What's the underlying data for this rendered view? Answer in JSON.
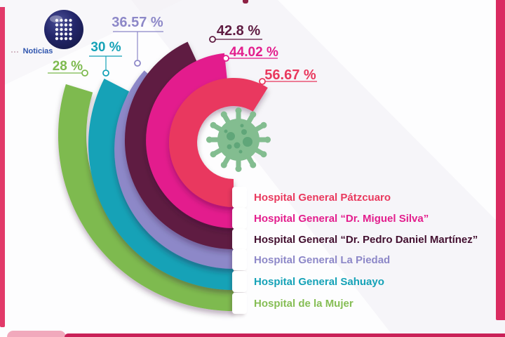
{
  "logo": {
    "text": "Noticias"
  },
  "chart_data": {
    "type": "bar",
    "variant": "radial-concentric-rings",
    "unit": "%",
    "legend_position": "bottom-right",
    "center_icon": "coronavirus",
    "rings": [
      {
        "label": "Hospital General Pátzcuaro",
        "value": 56.67,
        "display": "56.67 %",
        "color": "#e9395e",
        "label_color": "#e9395e"
      },
      {
        "label": "Hospital General “Dr. Miguel Silva”",
        "value": 44.02,
        "display": "44.02 %",
        "color": "#e31e8d",
        "label_color": "#e31e8d"
      },
      {
        "label": "Hospital General “Dr. Pedro Daniel Martínez”",
        "value": 42.8,
        "display": "42.8 %",
        "color": "#5f1c42",
        "label_color": "#431030"
      },
      {
        "label": "Hospital General La Piedad",
        "value": 36.57,
        "display": "36.57 %",
        "color": "#8d88c8",
        "label_color": "#8d88c8"
      },
      {
        "label": "Hospital General Sahuayo",
        "value": 30,
        "display": "30 %",
        "color": "#15a2b7",
        "label_color": "#15a2b7"
      },
      {
        "label": "Hospital de la Mujer",
        "value": 28,
        "display": "28 %",
        "color": "#7eba4f",
        "label_color": "#86be55"
      }
    ]
  },
  "theme": {
    "frame_left": "#e23a69",
    "frame_right": "#da2b61",
    "frame_bottom": "#c92158",
    "frame_corner": "#f1a9bc",
    "virus_body": "#83bd90",
    "virus_spots": "#5ca377",
    "logo_ball": "#23266a",
    "logo_text_color": "#2f55ae"
  }
}
